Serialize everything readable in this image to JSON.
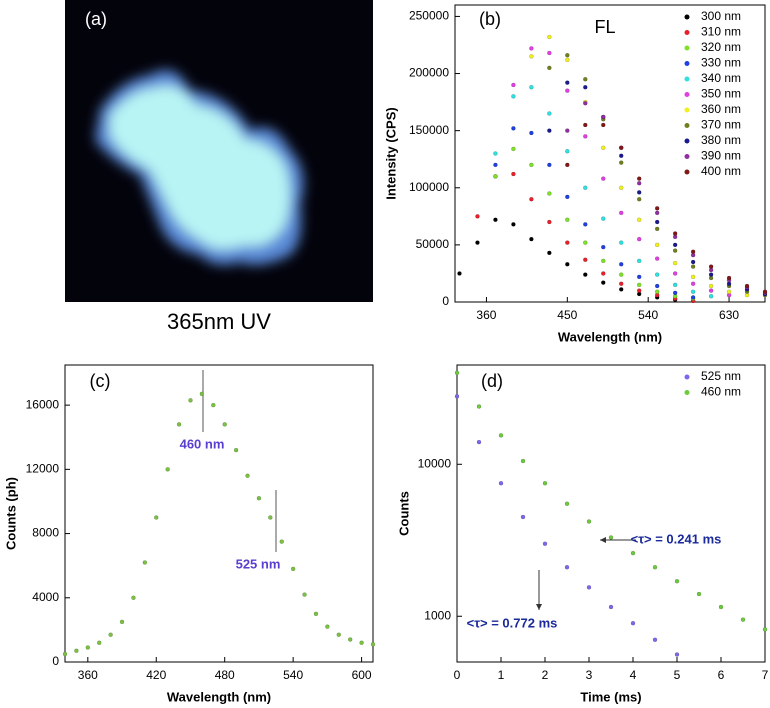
{
  "panel_a": {
    "label": "(a)",
    "caption": "365nm UV"
  },
  "chart_data": [
    {
      "type": "scatter",
      "panel_label": "(b)",
      "title": "FL",
      "x_label": "Wavelength (nm)",
      "y_label": "Intensity (CPS)",
      "xlim": [
        325,
        670
      ],
      "xticks": [
        360,
        450,
        540,
        630
      ],
      "ylim": [
        0,
        260000
      ],
      "yticks": [
        0,
        50000,
        100000,
        150000,
        200000,
        250000
      ],
      "legend": "upper right",
      "x": [
        330,
        350,
        370,
        390,
        410,
        430,
        450,
        470,
        490,
        510,
        530,
        550,
        570,
        590,
        610,
        630,
        650,
        670
      ],
      "series": [
        {
          "name": "300 nm",
          "color": "#000000",
          "values": [
            25000,
            52000,
            72000,
            68000,
            55000,
            43000,
            33000,
            24000,
            17000,
            11000,
            7000,
            4000,
            2000,
            1000,
            null,
            null,
            null,
            null
          ]
        },
        {
          "name": "310 nm",
          "color": "#e8202a",
          "values": [
            null,
            75000,
            110000,
            112000,
            90000,
            70000,
            52000,
            37000,
            25000,
            16000,
            10000,
            6000,
            3000,
            1000,
            null,
            null,
            null,
            null
          ]
        },
        {
          "name": "320 nm",
          "color": "#7ee02a",
          "values": [
            null,
            null,
            110000,
            134000,
            120000,
            95000,
            72000,
            52000,
            36000,
            24000,
            15000,
            9000,
            5000,
            3000,
            null,
            null,
            null,
            null
          ]
        },
        {
          "name": "330 nm",
          "color": "#2040e0",
          "values": [
            null,
            null,
            120000,
            152000,
            148000,
            120000,
            92000,
            68000,
            48000,
            33000,
            22000,
            14000,
            8000,
            4000,
            null,
            null,
            null,
            null
          ]
        },
        {
          "name": "340 nm",
          "color": "#30e0e0",
          "values": [
            null,
            null,
            130000,
            180000,
            188000,
            165000,
            132000,
            100000,
            73000,
            52000,
            36000,
            24000,
            15000,
            9000,
            5000,
            null,
            null,
            null
          ]
        },
        {
          "name": "350 nm",
          "color": "#e040e0",
          "values": [
            null,
            null,
            null,
            190000,
            222000,
            218000,
            185000,
            145000,
            108000,
            78000,
            55000,
            38000,
            25000,
            16000,
            10000,
            6000,
            null,
            null
          ]
        },
        {
          "name": "360 nm",
          "color": "#f0f020",
          "values": [
            null,
            null,
            null,
            null,
            215000,
            232000,
            212000,
            175000,
            135000,
            100000,
            72000,
            50000,
            34000,
            22000,
            14000,
            9000,
            6000,
            null
          ]
        },
        {
          "name": "370 nm",
          "color": "#708020",
          "values": [
            null,
            null,
            null,
            null,
            null,
            205000,
            216000,
            195000,
            160000,
            122000,
            90000,
            64000,
            45000,
            31000,
            21000,
            14000,
            9000,
            6000
          ]
        },
        {
          "name": "380 nm",
          "color": "#1a1a90",
          "values": [
            null,
            null,
            null,
            null,
            null,
            150000,
            192000,
            188000,
            162000,
            128000,
            96000,
            70000,
            50000,
            35000,
            24000,
            16000,
            11000,
            7000
          ]
        },
        {
          "name": "390 nm",
          "color": "#9030a0",
          "values": [
            null,
            null,
            null,
            null,
            null,
            null,
            150000,
            174000,
            162000,
            135000,
            104000,
            78000,
            57000,
            41000,
            28000,
            19000,
            13000,
            8000
          ]
        },
        {
          "name": "400 nm",
          "color": "#801818",
          "values": [
            null,
            null,
            null,
            null,
            null,
            null,
            120000,
            155000,
            155000,
            135000,
            108000,
            82000,
            60000,
            44000,
            31000,
            21000,
            14000,
            9000
          ]
        }
      ]
    },
    {
      "type": "scatter",
      "panel_label": "(c)",
      "x_label": "Wavelength (nm)",
      "y_label": "Counts (ph)",
      "xlim": [
        340,
        610
      ],
      "xticks": [
        360,
        420,
        480,
        540,
        600
      ],
      "ylim": [
        0,
        18500
      ],
      "yticks": [
        0,
        4000,
        8000,
        12000,
        16000
      ],
      "annotations": [
        "460 nm",
        "525 nm"
      ],
      "x": [
        340,
        350,
        360,
        370,
        380,
        390,
        400,
        410,
        420,
        430,
        440,
        450,
        460,
        470,
        480,
        490,
        500,
        510,
        520,
        530,
        540,
        550,
        560,
        570,
        580,
        590,
        600,
        610
      ],
      "series": [
        {
          "color": "#7cc242",
          "values": [
            500,
            700,
            900,
            1200,
            1700,
            2500,
            4000,
            6200,
            9000,
            12000,
            14800,
            16300,
            16700,
            16000,
            14800,
            13200,
            11600,
            10200,
            9000,
            7500,
            5800,
            4200,
            3000,
            2200,
            1700,
            1400,
            1200,
            1100
          ]
        }
      ]
    },
    {
      "type": "scatter",
      "panel_label": "(d)",
      "x_label": "Time (ms)",
      "y_label": "Counts",
      "log_y": true,
      "xlim": [
        0,
        7
      ],
      "xticks": [
        0,
        1,
        2,
        3,
        4,
        5,
        6,
        7
      ],
      "ylim": [
        500,
        45000
      ],
      "yticks": [
        1000,
        10000
      ],
      "legend": "upper right",
      "annotations": [
        "<τ> = 0.241 ms",
        "<τ> = 0.772 ms"
      ],
      "x": [
        0,
        0.5,
        1,
        1.5,
        2,
        2.5,
        3,
        3.5,
        4,
        4.5,
        5,
        5.5,
        6,
        6.5,
        7
      ],
      "series": [
        {
          "name": "525 nm",
          "color": "#7b68ee",
          "values": [
            28000,
            14000,
            7500,
            4500,
            3000,
            2100,
            1550,
            1150,
            900,
            700,
            560,
            null,
            null,
            null,
            null
          ]
        },
        {
          "name": "460 nm",
          "color": "#6ccb3c",
          "values": [
            40000,
            24000,
            15500,
            10500,
            7500,
            5500,
            4200,
            3300,
            2600,
            2100,
            1700,
            1400,
            1150,
            950,
            820
          ]
        }
      ]
    }
  ]
}
